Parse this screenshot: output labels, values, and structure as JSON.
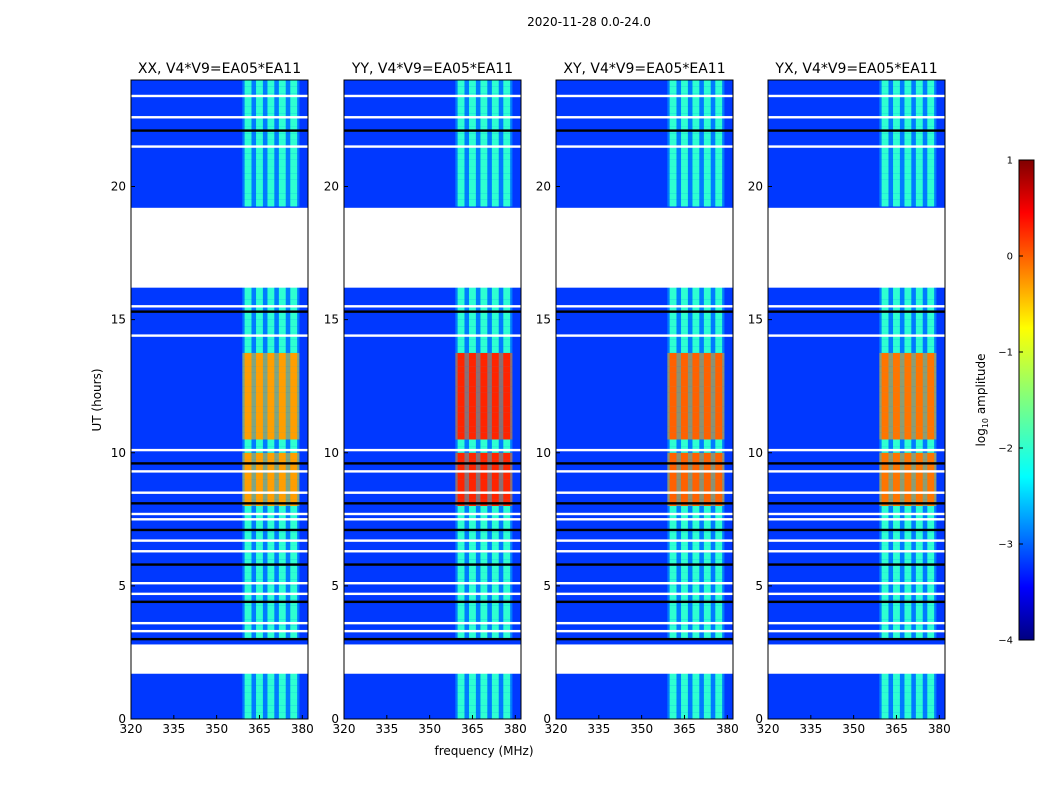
{
  "chart_data": {
    "type": "heatmap",
    "suptitle": "2020-11-28 0.0-24.0",
    "xlabel": "frequency (MHz)",
    "ylabel": "UT (hours)",
    "xlim": [
      320,
      382
    ],
    "ylim": [
      0,
      24
    ],
    "xticks": [
      320,
      335,
      350,
      365,
      380
    ],
    "yticks": [
      0,
      5,
      10,
      15,
      20
    ],
    "panels": [
      {
        "title": "XX, V4*V9=EA05*EA11",
        "polarization": "XX",
        "rfi_peak_log10": -0.4
      },
      {
        "title": "YY, V4*V9=EA05*EA11",
        "polarization": "YY",
        "rfi_peak_log10": 0.2
      },
      {
        "title": "XY, V4*V9=EA05*EA11",
        "polarization": "XY",
        "rfi_peak_log10": -0.1
      },
      {
        "title": "YX, V4*V9=EA05*EA11",
        "polarization": "YX",
        "rfi_peak_log10": -0.2
      }
    ],
    "background_log10": -3.1,
    "rfi_band_mhz": [
      359,
      379
    ],
    "rfi_channels_mhz": [
      361,
      365,
      369,
      373,
      377
    ],
    "strong_rfi_hours": [
      [
        7.9,
        9.8
      ],
      [
        10.4,
        13.6
      ]
    ],
    "blank_hours": [
      [
        1.7,
        2.8
      ],
      [
        16.2,
        19.2
      ]
    ],
    "flagged_rows_hours": [
      3.0,
      3.3,
      3.6,
      4.4,
      4.7,
      5.1,
      5.8,
      6.3,
      6.7,
      7.1,
      7.5,
      7.7,
      8.1,
      8.5,
      9.3,
      9.6,
      10.1,
      14.4,
      15.3,
      15.5,
      21.5,
      22.1,
      22.6,
      23.4
    ],
    "colorbar": {
      "label": "log",
      "label_sub": "10",
      "label_suffix": " amplitude",
      "min": -4,
      "max": 1,
      "ticks": [
        1,
        0,
        -1,
        -2,
        -3,
        -4
      ],
      "tick_labels": [
        "1",
        "0",
        "−1",
        "−2",
        "−3",
        "−4"
      ],
      "colormap": "jet"
    }
  }
}
